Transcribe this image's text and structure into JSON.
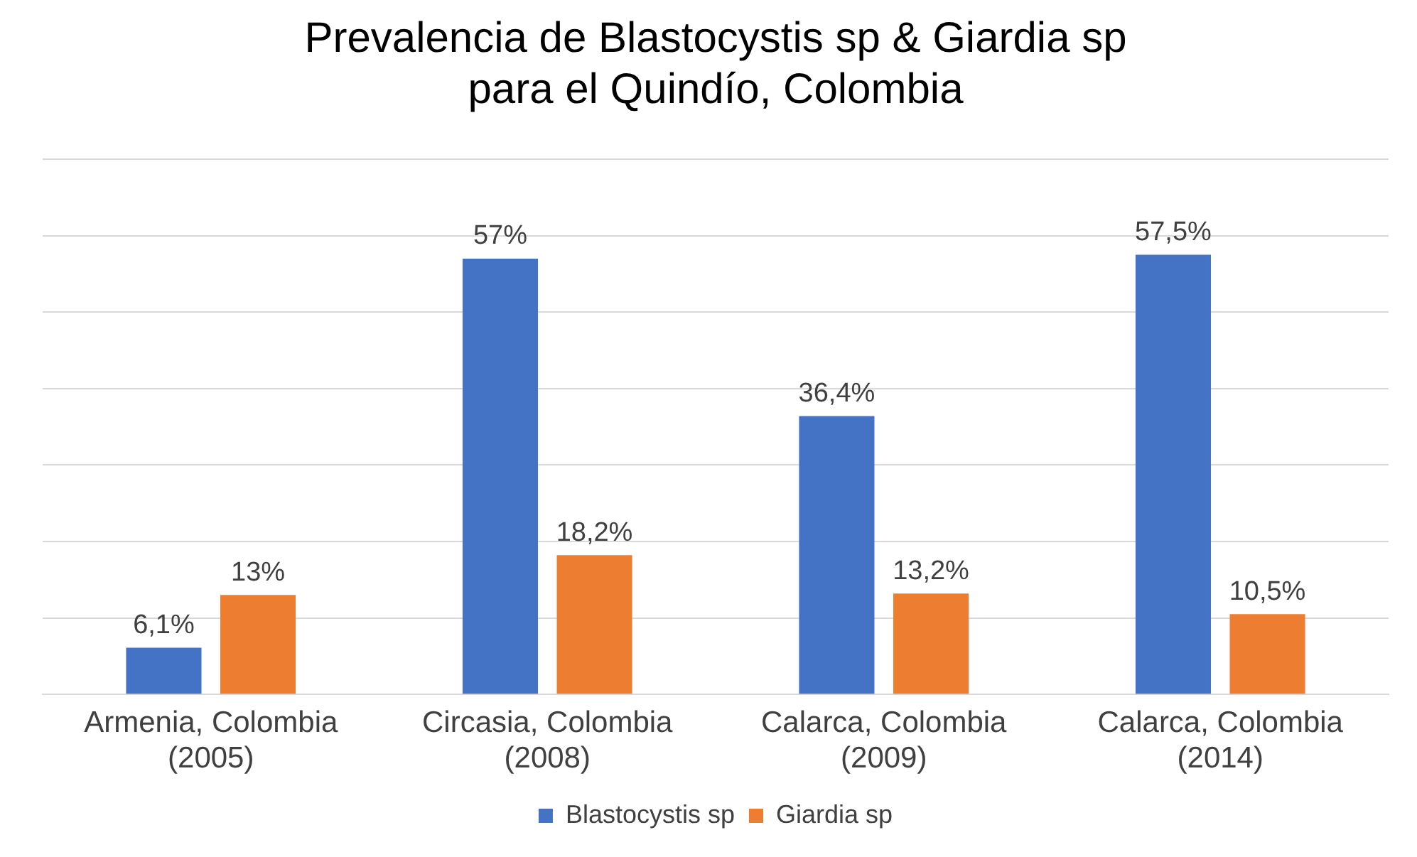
{
  "chart_data": {
    "type": "bar",
    "title": "Prevalencia de Blastocystis sp & Giardia sp\npara el Quindío, Colombia",
    "categories": [
      "Armenia, Colombia\n(2005)",
      "Circasia, Colombia\n(2008)",
      "Calarca, Colombia\n(2009)",
      "Calarca, Colombia\n(2014)"
    ],
    "series": [
      {
        "name": "Blastocystis sp",
        "color": "#4472c4",
        "values": [
          6.1,
          57,
          36.4,
          57.5
        ],
        "value_labels": [
          "6,1%",
          "57%",
          "36,4%",
          "57,5%"
        ]
      },
      {
        "name": "Giardia sp",
        "color": "#ed7d31",
        "values": [
          13,
          18.2,
          13.2,
          10.5
        ],
        "value_labels": [
          "13%",
          "18,2%",
          "13,2%",
          "10,5%"
        ]
      }
    ],
    "ylim": [
      0,
      70
    ],
    "yticks": [
      {
        "value": 0,
        "label": null
      },
      {
        "value": 10,
        "label": null
      },
      {
        "value": 20,
        "label": null
      },
      {
        "value": 30,
        "label": null
      },
      {
        "value": 40,
        "label": null
      },
      {
        "value": 50,
        "label": null
      },
      {
        "value": 60,
        "label": null
      },
      {
        "value": 70,
        "label": null
      }
    ],
    "grid": "y",
    "legend": "bottom",
    "tick_labels": "x"
  }
}
